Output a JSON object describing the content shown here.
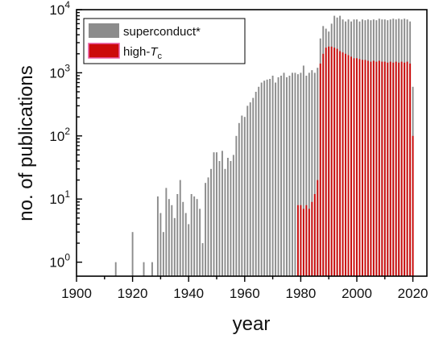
{
  "chart_data": {
    "type": "bar",
    "title": "",
    "xlabel": "year",
    "ylabel": "no. of publications",
    "yscale": "log",
    "xlim": [
      1900,
      2025
    ],
    "ylim": [
      0.6,
      10000
    ],
    "xticks": [
      "1900",
      "1920",
      "1940",
      "1960",
      "1980",
      "2000",
      "2020"
    ],
    "xtick_values": [
      1900,
      1920,
      1940,
      1960,
      1980,
      2000,
      2020
    ],
    "yticks": [
      {
        "base": "10",
        "exp": "0",
        "value": 1
      },
      {
        "base": "10",
        "exp": "1",
        "value": 10
      },
      {
        "base": "10",
        "exp": "2",
        "value": 100
      },
      {
        "base": "10",
        "exp": "3",
        "value": 1000
      },
      {
        "base": "10",
        "exp": "4",
        "value": 10000
      }
    ],
    "legend": {
      "position": "top-left",
      "entries": [
        {
          "label": "superconduct*",
          "color": "#8c8c8c"
        },
        {
          "label_main": "high-",
          "label_italic": "T",
          "label_sub": "c",
          "color": "#cc0a0a"
        }
      ]
    },
    "grid": false,
    "series": [
      {
        "color": "#8c8c8c",
        "points": [
          [
            1914,
            1
          ],
          [
            1920,
            3
          ],
          [
            1924,
            1
          ],
          [
            1927,
            1
          ],
          [
            1929,
            11
          ],
          [
            1930,
            6
          ],
          [
            1931,
            3
          ],
          [
            1932,
            15
          ],
          [
            1933,
            10
          ],
          [
            1934,
            8
          ],
          [
            1935,
            5
          ],
          [
            1936,
            12
          ],
          [
            1937,
            20
          ],
          [
            1938,
            9
          ],
          [
            1939,
            6
          ],
          [
            1940,
            4
          ],
          [
            1941,
            12
          ],
          [
            1942,
            11
          ],
          [
            1943,
            10
          ],
          [
            1944,
            7
          ],
          [
            1945,
            2
          ],
          [
            1946,
            18
          ],
          [
            1947,
            22
          ],
          [
            1948,
            30
          ],
          [
            1949,
            55
          ],
          [
            1950,
            55
          ],
          [
            1951,
            40
          ],
          [
            1952,
            58
          ],
          [
            1953,
            30
          ],
          [
            1954,
            45
          ],
          [
            1955,
            40
          ],
          [
            1956,
            50
          ],
          [
            1957,
            100
          ],
          [
            1958,
            160
          ],
          [
            1959,
            210
          ],
          [
            1960,
            200
          ],
          [
            1961,
            300
          ],
          [
            1962,
            340
          ],
          [
            1963,
            400
          ],
          [
            1964,
            500
          ],
          [
            1965,
            600
          ],
          [
            1966,
            700
          ],
          [
            1967,
            750
          ],
          [
            1968,
            780
          ],
          [
            1969,
            800
          ],
          [
            1970,
            900
          ],
          [
            1971,
            700
          ],
          [
            1972,
            850
          ],
          [
            1973,
            900
          ],
          [
            1974,
            1000
          ],
          [
            1975,
            850
          ],
          [
            1976,
            900
          ],
          [
            1977,
            1000
          ],
          [
            1978,
            1000
          ],
          [
            1979,
            950
          ],
          [
            1980,
            1000
          ],
          [
            1981,
            1300
          ],
          [
            1982,
            900
          ],
          [
            1983,
            1000
          ],
          [
            1984,
            1100
          ],
          [
            1985,
            1000
          ],
          [
            1986,
            1200
          ],
          [
            1987,
            3500
          ],
          [
            1988,
            5500
          ],
          [
            1989,
            5000
          ],
          [
            1990,
            4500
          ],
          [
            1991,
            6000
          ],
          [
            1992,
            8000
          ],
          [
            1993,
            7500
          ],
          [
            1994,
            8000
          ],
          [
            1995,
            7000
          ],
          [
            1996,
            6500
          ],
          [
            1997,
            7000
          ],
          [
            1998,
            6500
          ],
          [
            1999,
            7000
          ],
          [
            2000,
            7000
          ],
          [
            2001,
            6500
          ],
          [
            2002,
            7000
          ],
          [
            2003,
            6800
          ],
          [
            2004,
            7000
          ],
          [
            2005,
            6800
          ],
          [
            2006,
            7000
          ],
          [
            2007,
            6800
          ],
          [
            2008,
            7200
          ],
          [
            2009,
            7000
          ],
          [
            2010,
            7000
          ],
          [
            2011,
            6800
          ],
          [
            2012,
            7000
          ],
          [
            2013,
            7200
          ],
          [
            2014,
            7000
          ],
          [
            2015,
            7200
          ],
          [
            2016,
            7000
          ],
          [
            2017,
            7200
          ],
          [
            2018,
            7000
          ],
          [
            2019,
            6500
          ],
          [
            2020,
            600
          ]
        ]
      },
      {
        "color": "#cc0a0a",
        "points": [
          [
            1979,
            8
          ],
          [
            1980,
            8
          ],
          [
            1981,
            7
          ],
          [
            1982,
            8
          ],
          [
            1983,
            7
          ],
          [
            1984,
            9
          ],
          [
            1985,
            12
          ],
          [
            1986,
            20
          ],
          [
            1987,
            1400
          ],
          [
            1988,
            2000
          ],
          [
            1989,
            2500
          ],
          [
            1990,
            2600
          ],
          [
            1991,
            2600
          ],
          [
            1992,
            2500
          ],
          [
            1993,
            2400
          ],
          [
            1994,
            2200
          ],
          [
            1995,
            2100
          ],
          [
            1996,
            2000
          ],
          [
            1997,
            1900
          ],
          [
            1998,
            1800
          ],
          [
            1999,
            1700
          ],
          [
            2000,
            1700
          ],
          [
            2001,
            1650
          ],
          [
            2002,
            1600
          ],
          [
            2003,
            1600
          ],
          [
            2004,
            1550
          ],
          [
            2005,
            1500
          ],
          [
            2006,
            1550
          ],
          [
            2007,
            1500
          ],
          [
            2008,
            1550
          ],
          [
            2009,
            1500
          ],
          [
            2010,
            1500
          ],
          [
            2011,
            1450
          ],
          [
            2012,
            1500
          ],
          [
            2013,
            1450
          ],
          [
            2014,
            1500
          ],
          [
            2015,
            1450
          ],
          [
            2016,
            1500
          ],
          [
            2017,
            1450
          ],
          [
            2018,
            1500
          ],
          [
            2019,
            1400
          ],
          [
            2020,
            100
          ]
        ]
      }
    ]
  }
}
